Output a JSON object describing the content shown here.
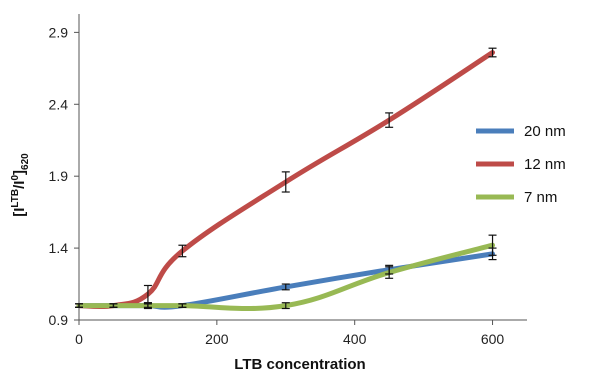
{
  "chart_data": {
    "type": "line",
    "title": "",
    "xlabel": "LTB concentration",
    "ylabel_main": "[I",
    "ylabel_sup": "LTB",
    "ylabel_mid": "/I",
    "ylabel_sup2": "0",
    "ylabel_end": "]",
    "ylabel_sub": "620",
    "xlim": [
      0,
      650
    ],
    "ylim": [
      0.9,
      3.0
    ],
    "x_ticks": [
      0,
      200,
      400,
      600
    ],
    "x_tick_labels": [
      "0",
      "200",
      "400",
      "600"
    ],
    "y_ticks": [
      0.9,
      1.4,
      1.9,
      2.4,
      2.9
    ],
    "y_tick_labels": [
      "0.9",
      "1.4",
      "1.9",
      "2.4",
      "2.9"
    ],
    "grid": false,
    "legend_position": "right",
    "smooth": true,
    "series": [
      {
        "name": "20 nm",
        "color": "#4a7ebb",
        "x": [
          0,
          50,
          100,
          150,
          300,
          450,
          600
        ],
        "y": [
          1.0,
          1.0,
          1.0,
          1.0,
          1.13,
          1.25,
          1.36
        ],
        "error": [
          0.0,
          0.0,
          0.02,
          0.0,
          0.02,
          0.03,
          0.04
        ]
      },
      {
        "name": "12 nm",
        "color": "#be4b48",
        "x": [
          0,
          50,
          100,
          150,
          300,
          450,
          600
        ],
        "y": [
          1.0,
          1.0,
          1.08,
          1.38,
          1.86,
          2.29,
          2.76
        ],
        "error": [
          0.0,
          0.0,
          0.06,
          0.04,
          0.07,
          0.05,
          0.03
        ]
      },
      {
        "name": "7 nm",
        "color": "#98b954",
        "x": [
          0,
          50,
          100,
          150,
          300,
          450,
          600
        ],
        "y": [
          1.0,
          1.0,
          1.0,
          1.0,
          1.0,
          1.23,
          1.42
        ],
        "error": [
          0.0,
          0.0,
          0.0,
          0.0,
          0.02,
          0.04,
          0.07
        ]
      }
    ]
  }
}
